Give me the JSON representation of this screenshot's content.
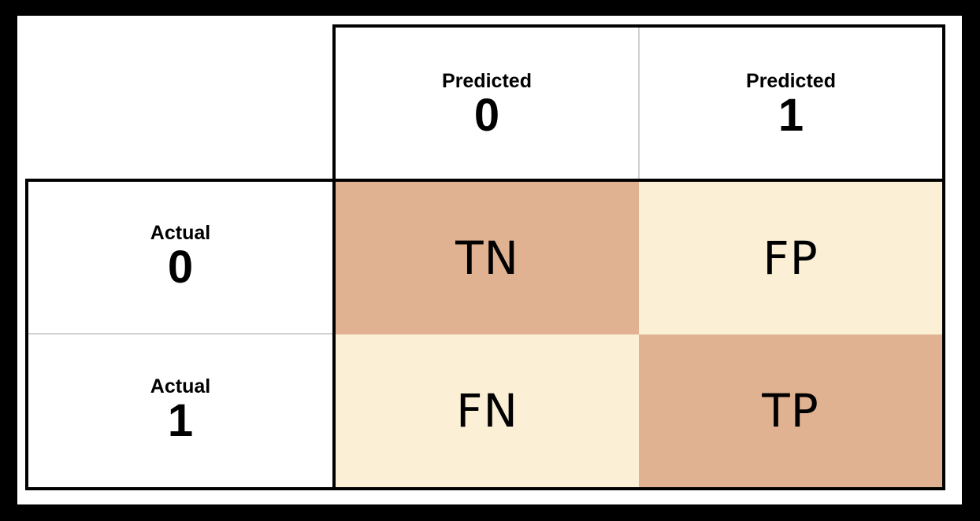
{
  "columns": [
    {
      "label": "Predicted",
      "value": "0"
    },
    {
      "label": "Predicted",
      "value": "1"
    }
  ],
  "rows": [
    {
      "label": "Actual",
      "value": "0"
    },
    {
      "label": "Actual",
      "value": "1"
    }
  ],
  "cells": [
    [
      {
        "text": "TN",
        "color": "#e0b291"
      },
      {
        "text": "FP",
        "color": "#fbf0d5"
      }
    ],
    [
      {
        "text": "FN",
        "color": "#fbf0d5"
      },
      {
        "text": "TP",
        "color": "#e0b291"
      }
    ]
  ],
  "colors": {
    "background": "#000000",
    "canvas": "#ffffff",
    "dark_cell": "#e0b291",
    "light_cell": "#fbf0d5"
  }
}
